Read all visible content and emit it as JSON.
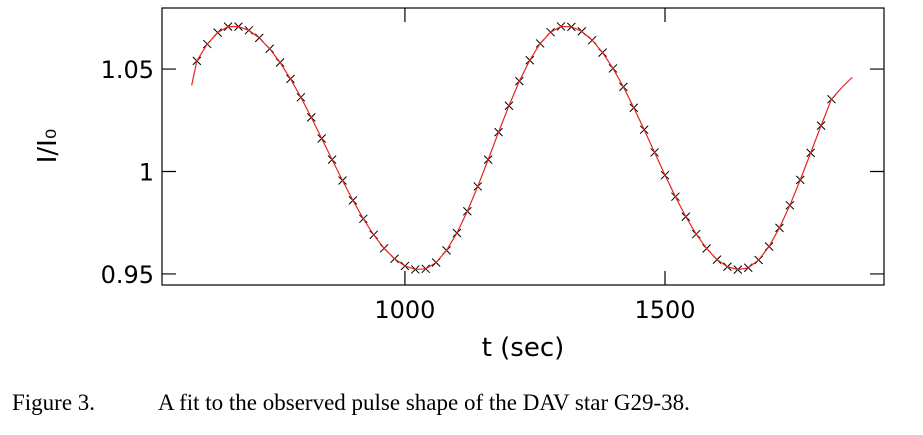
{
  "chart_data": {
    "type": "line",
    "xlabel": "t (sec)",
    "ylabel": "I/I₀",
    "caption_label": "Figure 3.",
    "caption": "A fit to the observed pulse shape of the DAV star G29-38.",
    "xlim": [
      533,
      1921
    ],
    "ylim": [
      0.9446,
      1.0798
    ],
    "xticks": [
      1000,
      1500
    ],
    "yticks": [
      0.95,
      1,
      1.05
    ],
    "series": [
      {
        "style": "markers",
        "color": "#000000",
        "x": [
          600,
          620,
          640,
          660,
          680,
          700,
          720,
          740,
          760,
          780,
          800,
          820,
          840,
          860,
          880,
          900,
          920,
          940,
          960,
          980,
          1000,
          1020,
          1040,
          1060,
          1080,
          1100,
          1120,
          1140,
          1160,
          1180,
          1200,
          1220,
          1240,
          1260,
          1280,
          1300,
          1320,
          1340,
          1360,
          1380,
          1400,
          1420,
          1440,
          1460,
          1480,
          1500,
          1520,
          1540,
          1560,
          1580,
          1600,
          1620,
          1640,
          1660,
          1680,
          1700,
          1720,
          1740,
          1760,
          1780,
          1800,
          1820
        ],
        "values": [
          1.054,
          1.0622,
          1.0678,
          1.0707,
          1.0707,
          1.0689,
          1.0652,
          1.0599,
          1.0532,
          1.0452,
          1.0362,
          1.0264,
          1.0161,
          1.0058,
          0.9956,
          0.9859,
          0.9769,
          0.9691,
          0.9625,
          0.9574,
          0.9539,
          0.9522,
          0.9525,
          0.9556,
          0.9615,
          0.97,
          0.9806,
          0.9927,
          1.0058,
          1.0192,
          1.0321,
          1.0441,
          1.0543,
          1.0625,
          1.068,
          1.0708,
          1.0706,
          1.0684,
          1.0641,
          1.058,
          1.0503,
          1.0413,
          1.0311,
          1.0204,
          1.0093,
          0.9982,
          0.9877,
          0.9779,
          0.9694,
          0.9624,
          0.957,
          0.9535,
          0.9521,
          0.953,
          0.9568,
          0.9634,
          0.9725,
          0.9835,
          0.9959,
          1.0091,
          1.0224,
          1.0353
        ]
      },
      {
        "style": "line",
        "color": "#e8231e",
        "x": [
          590,
          600,
          620,
          640,
          660,
          680,
          700,
          720,
          740,
          760,
          780,
          800,
          820,
          840,
          860,
          880,
          900,
          920,
          940,
          960,
          980,
          1000,
          1020,
          1040,
          1060,
          1080,
          1100,
          1120,
          1140,
          1160,
          1180,
          1200,
          1220,
          1240,
          1260,
          1280,
          1300,
          1320,
          1340,
          1360,
          1380,
          1400,
          1420,
          1440,
          1460,
          1480,
          1500,
          1520,
          1540,
          1560,
          1580,
          1600,
          1620,
          1640,
          1660,
          1680,
          1700,
          1720,
          1740,
          1760,
          1780,
          1800,
          1820,
          1840,
          1860
        ],
        "values": [
          1.042,
          1.054,
          1.0622,
          1.0678,
          1.0707,
          1.0707,
          1.0689,
          1.0652,
          1.0599,
          1.0532,
          1.0452,
          1.0362,
          1.0264,
          1.0161,
          1.0058,
          0.9956,
          0.9859,
          0.9769,
          0.9691,
          0.9625,
          0.9574,
          0.9539,
          0.9522,
          0.9525,
          0.9556,
          0.9615,
          0.97,
          0.9806,
          0.9927,
          1.0058,
          1.0192,
          1.0321,
          1.0441,
          1.0543,
          1.0625,
          1.068,
          1.0708,
          1.0706,
          1.0684,
          1.0641,
          1.058,
          1.0503,
          1.0413,
          1.0311,
          1.0204,
          1.0093,
          0.9982,
          0.9877,
          0.9779,
          0.9694,
          0.9624,
          0.957,
          0.9535,
          0.9521,
          0.953,
          0.9568,
          0.9634,
          0.9725,
          0.9835,
          0.9959,
          1.0091,
          1.0224,
          1.0353,
          1.041,
          1.046
        ]
      }
    ]
  }
}
